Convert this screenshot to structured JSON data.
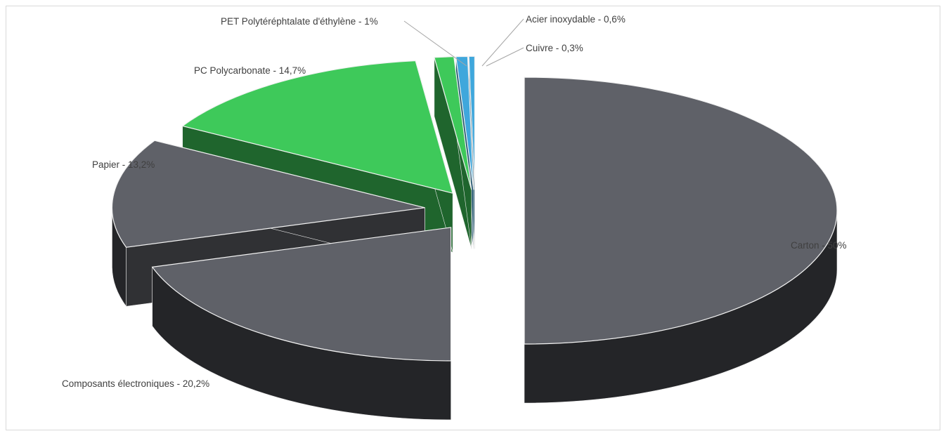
{
  "chart_data": {
    "type": "pie",
    "style": "3d-exploded",
    "title": "",
    "legend": "none",
    "slices": [
      {
        "label": "Carton - 50%",
        "value": 50,
        "color": "#5f6168"
      },
      {
        "label": "Composants électroniques - 20,2%",
        "value": 20.2,
        "color": "#5f6168"
      },
      {
        "label": "Papier - 13,2%",
        "value": 13.2,
        "color": "#5f6168"
      },
      {
        "label": "PC Polycarbonate - 14,7%",
        "value": 14.7,
        "color": "#3ec95a"
      },
      {
        "label": "PET Polytéréphtalate d'éthylène - 1%",
        "value": 1,
        "color": "#3ec95a"
      },
      {
        "label": "Acier inoxydable - 0,6%",
        "value": 0.6,
        "color": "#3fa7dc"
      },
      {
        "label": "Cuivre - 0,3%",
        "value": 0.3,
        "color": "#3fa7dc"
      }
    ]
  }
}
